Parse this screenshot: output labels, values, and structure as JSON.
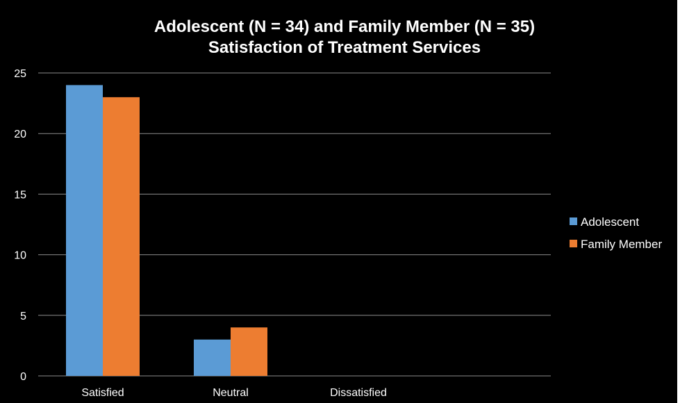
{
  "chart_data": {
    "type": "bar",
    "title": [
      "Adolescent (N = 34) and Family Member  (N = 35)",
      "Satisfaction of Treatment Services"
    ],
    "categories": [
      "Satisfied",
      "Neutral",
      "Dissatisfied"
    ],
    "series": [
      {
        "name": "Adolescent",
        "values": [
          24,
          3,
          0
        ],
        "color": "#5B9BD5"
      },
      {
        "name": "Family Member",
        "values": [
          23,
          4,
          0
        ],
        "color": "#ED7D31"
      }
    ],
    "ylim": [
      0,
      25
    ],
    "yticks": [
      0,
      5,
      10,
      15,
      20,
      25
    ],
    "grid": true,
    "legend_position": "right",
    "background": "#000000"
  }
}
